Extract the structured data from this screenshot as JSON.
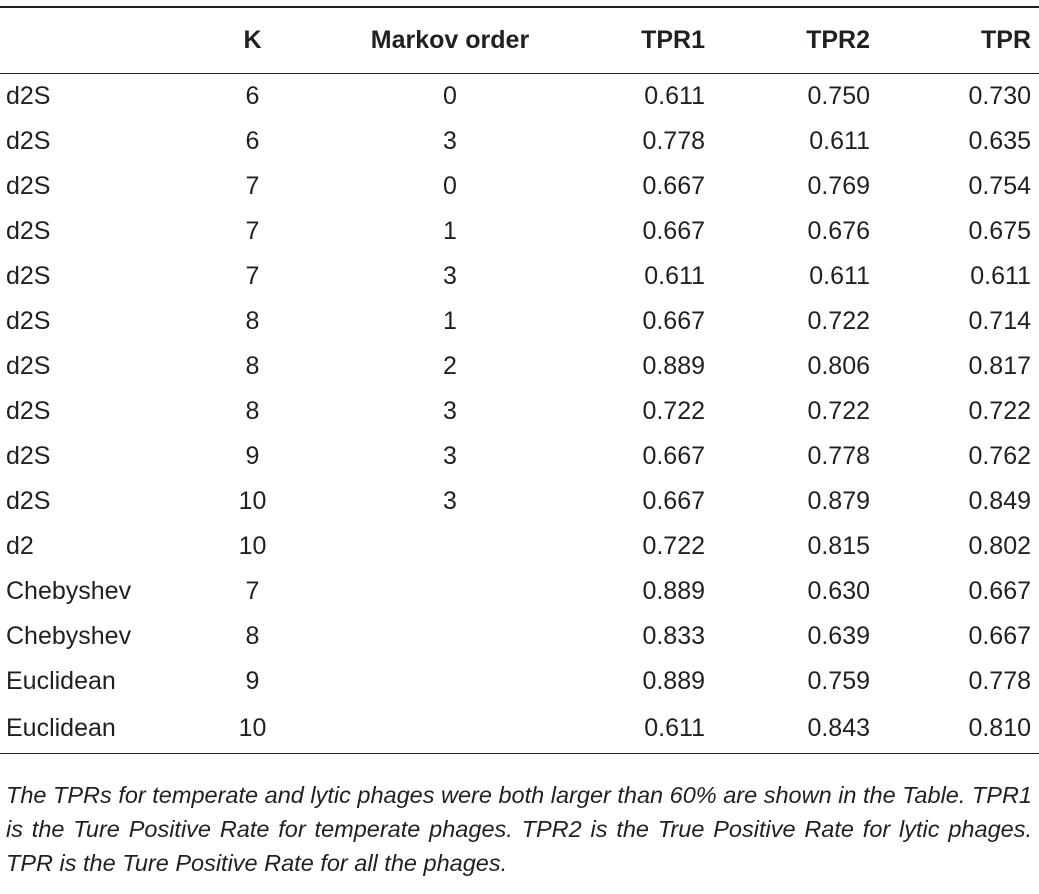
{
  "table": {
    "headers": [
      "",
      "K",
      "Markov order",
      "TPR1",
      "TPR2",
      "TPR"
    ],
    "rows": [
      [
        "d2S",
        "6",
        "0",
        "0.611",
        "0.750",
        "0.730"
      ],
      [
        "d2S",
        "6",
        "3",
        "0.778",
        "0.611",
        "0.635"
      ],
      [
        "d2S",
        "7",
        "0",
        "0.667",
        "0.769",
        "0.754"
      ],
      [
        "d2S",
        "7",
        "1",
        "0.667",
        "0.676",
        "0.675"
      ],
      [
        "d2S",
        "7",
        "3",
        "0.611",
        "0.611",
        "0.611"
      ],
      [
        "d2S",
        "8",
        "1",
        "0.667",
        "0.722",
        "0.714"
      ],
      [
        "d2S",
        "8",
        "2",
        "0.889",
        "0.806",
        "0.817"
      ],
      [
        "d2S",
        "8",
        "3",
        "0.722",
        "0.722",
        "0.722"
      ],
      [
        "d2S",
        "9",
        "3",
        "0.667",
        "0.778",
        "0.762"
      ],
      [
        "d2S",
        "10",
        "3",
        "0.667",
        "0.879",
        "0.849"
      ],
      [
        "d2",
        "10",
        "",
        "0.722",
        "0.815",
        "0.802"
      ],
      [
        "Chebyshev",
        "7",
        "",
        "0.889",
        "0.630",
        "0.667"
      ],
      [
        "Chebyshev",
        "8",
        "",
        "0.833",
        "0.639",
        "0.667"
      ],
      [
        "Euclidean",
        "9",
        "",
        "0.889",
        "0.759",
        "0.778"
      ],
      [
        "Euclidean",
        "10",
        "",
        "0.611",
        "0.843",
        "0.810"
      ]
    ]
  },
  "caption": "The TPRs for temperate and lytic phages were both larger than 60% are shown in the Table. TPR1 is the Ture Positive Rate for temperate phages. TPR2 is the True Positive Rate for lytic phages. TPR is the Ture Positive Rate for all the phages."
}
